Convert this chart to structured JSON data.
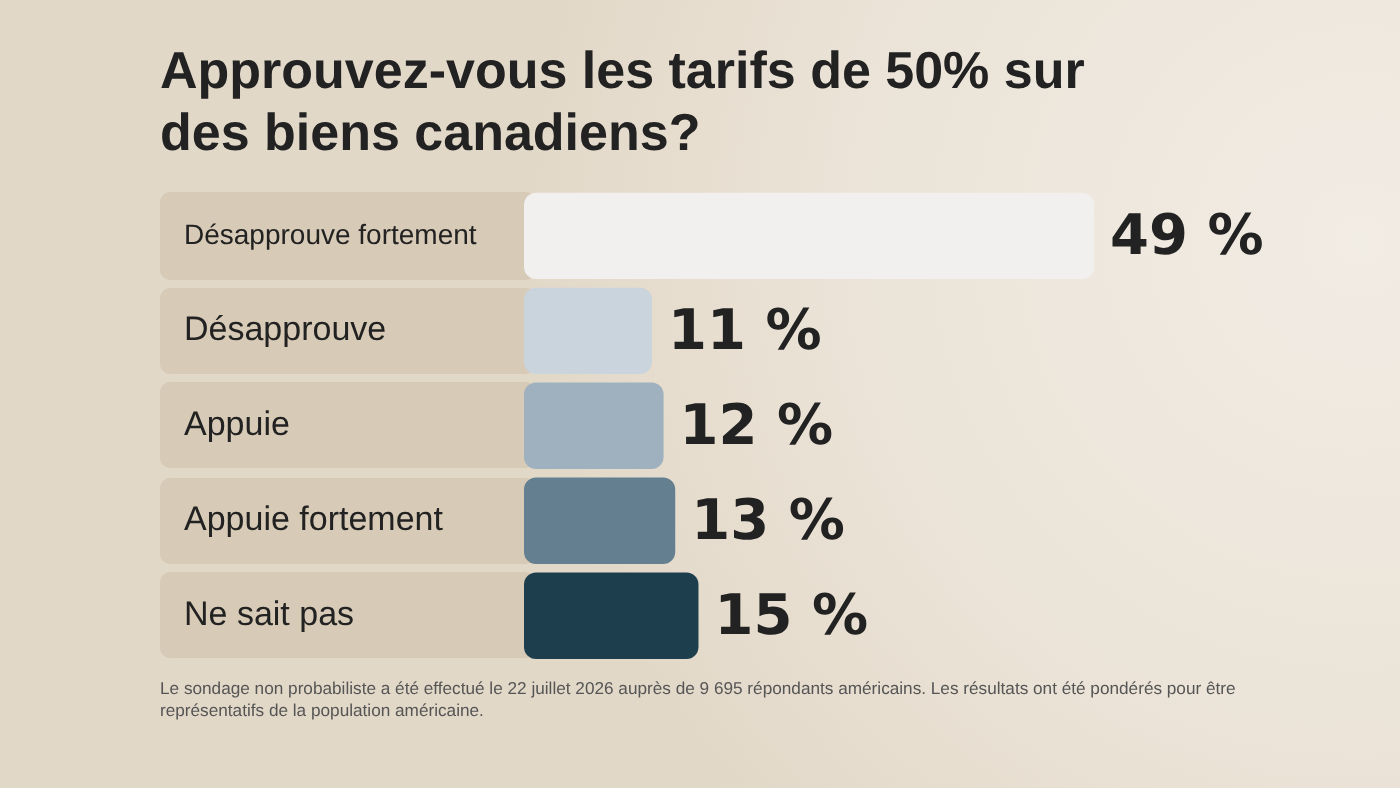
{
  "chart_data": {
    "type": "bar",
    "orientation": "horizontal",
    "title": "Approuvez-vous les tarifs de 50% sur des biens canadiens?",
    "categories": [
      "Désapprouve fortement",
      "Désapprouve",
      "Appuie",
      "Appuie fortement",
      "Ne sait pas"
    ],
    "values": [
      49,
      11,
      12,
      13,
      15
    ],
    "colors": [
      "#f1f0ef",
      "#c9d4dd",
      "#9fb1be",
      "#647f8f",
      "#1d3f4d"
    ],
    "value_labels": [
      "49 %",
      "11 %",
      "12 %",
      "13 %",
      "15 %"
    ],
    "tick_labels": "y",
    "legend": false,
    "annotations": [
      "Le sondage non probabiliste a été effectué le 22 juillet 2026 auprès de 9 695 répondants américains. Les résultats ont été pondérés pour être représentatifs de la population américaine."
    ]
  }
}
